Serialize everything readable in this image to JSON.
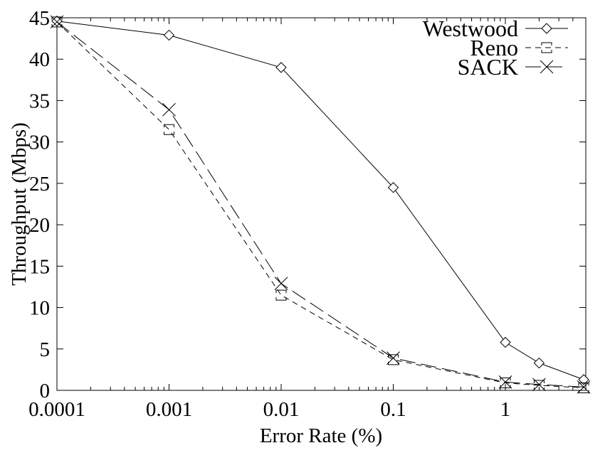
{
  "chart_data": {
    "type": "line",
    "title": "",
    "xlabel": "Error Rate (%)",
    "ylabel": "Throughput (Mbps)",
    "xscale": "log",
    "xlim": [
      0.0001,
      5
    ],
    "ylim": [
      0,
      45
    ],
    "xticks": [
      0.0001,
      0.001,
      0.01,
      0.1,
      1
    ],
    "xtick_labels": [
      "0.0001",
      "0.001",
      "0.01",
      "0.1",
      "1"
    ],
    "yticks": [
      0,
      5,
      10,
      15,
      20,
      25,
      30,
      35,
      40,
      45
    ],
    "ytick_labels": [
      "0",
      "5",
      "10",
      "15",
      "20",
      "25",
      "30",
      "35",
      "40",
      "45"
    ],
    "grid": false,
    "legend_position": "top-right",
    "series": [
      {
        "name": "Westwood",
        "marker": "diamond",
        "line_style": "solid",
        "color": "#000000",
        "x": [
          0.0001,
          0.001,
          0.01,
          0.1,
          1,
          2,
          5
        ],
        "y": [
          44.6,
          42.9,
          39.0,
          24.5,
          5.8,
          3.3,
          1.3
        ]
      },
      {
        "name": "Reno",
        "marker": "square-open",
        "line_style": "dashed",
        "color": "#000000",
        "x": [
          0.0001,
          0.001,
          0.01,
          0.1,
          1,
          2,
          5
        ],
        "y": [
          44.5,
          31.5,
          11.5,
          3.7,
          0.9,
          0.6,
          0.3
        ]
      },
      {
        "name": "SACK",
        "marker": "x",
        "line_style": "long-dashed",
        "color": "#000000",
        "x": [
          0.0001,
          0.001,
          0.01,
          0.1,
          1,
          2,
          5
        ],
        "y": [
          44.5,
          33.9,
          12.9,
          3.9,
          1.0,
          0.7,
          0.4
        ]
      }
    ]
  }
}
